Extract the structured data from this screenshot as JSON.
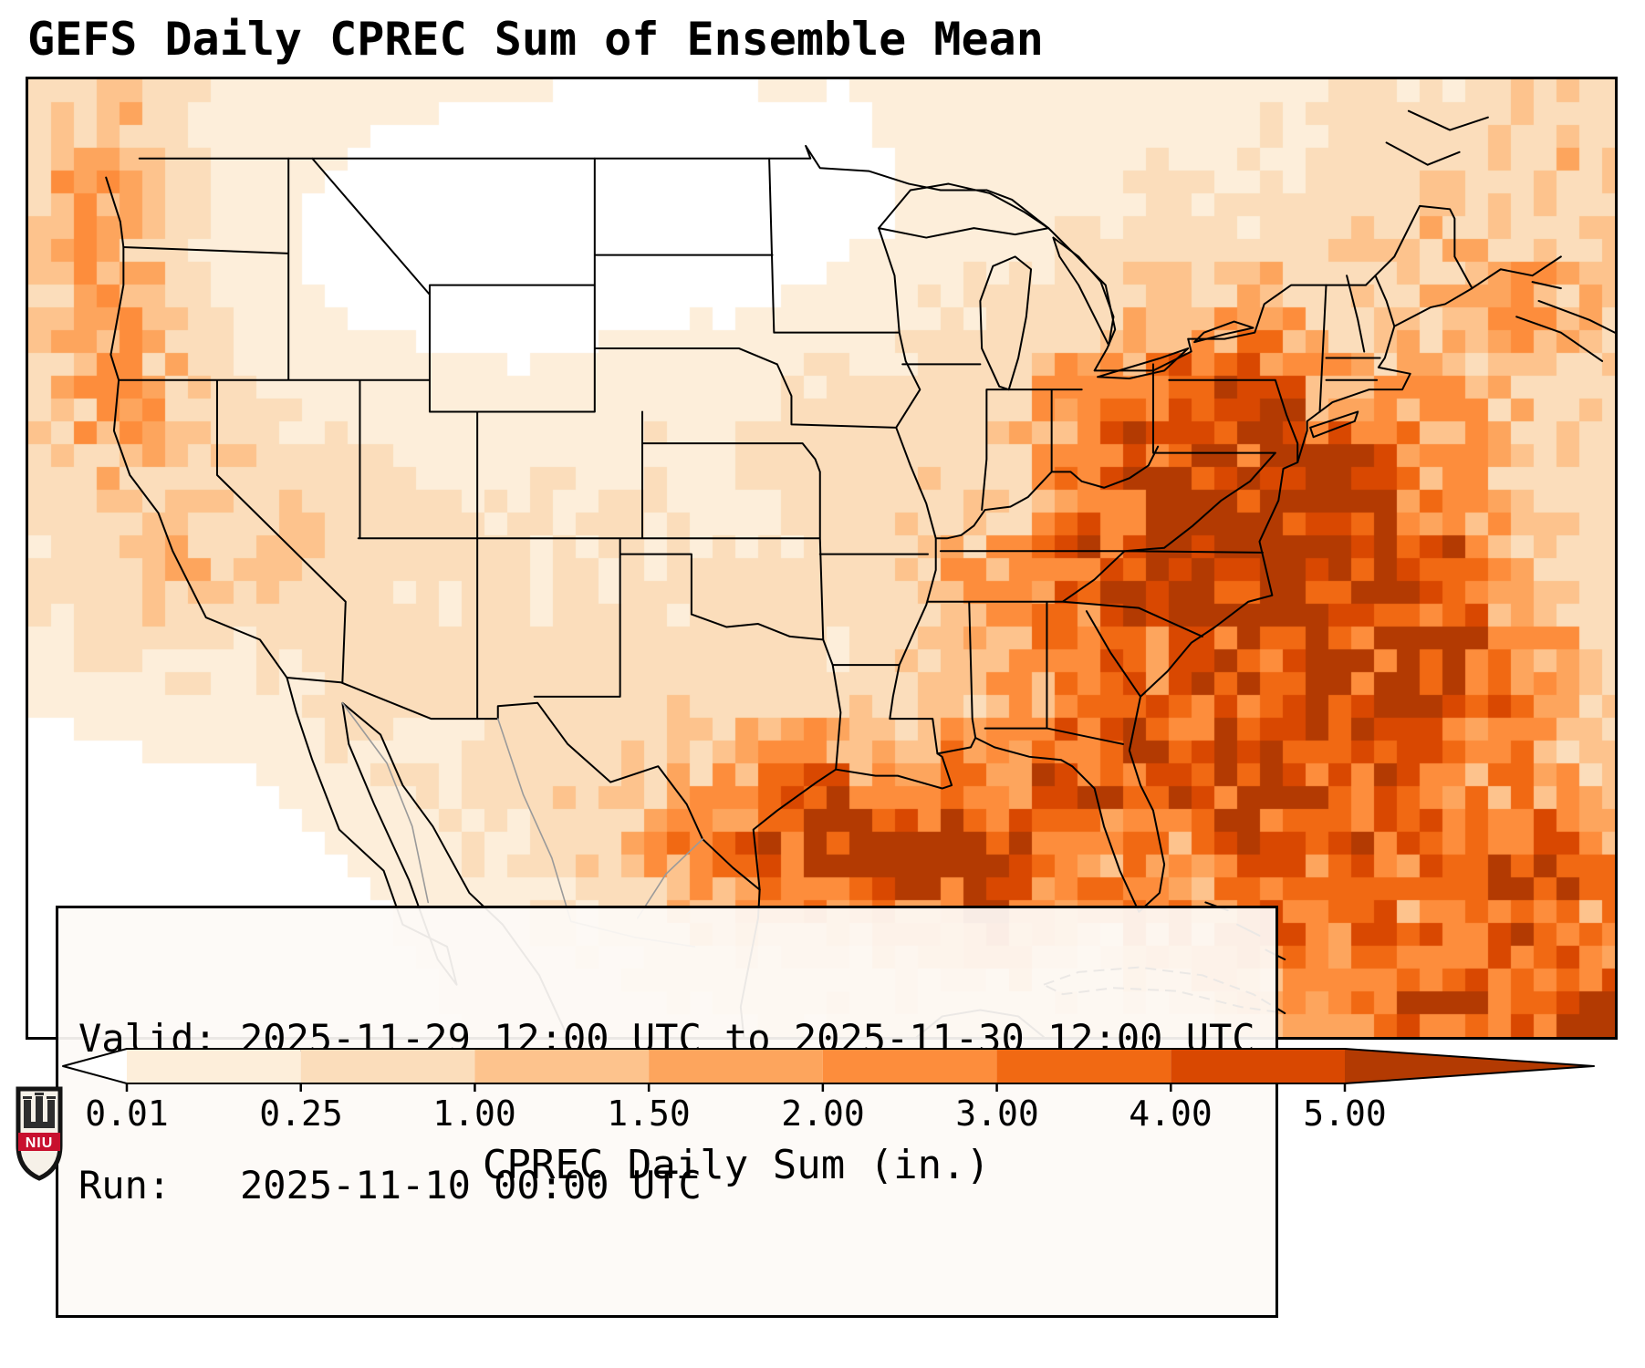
{
  "title": "GEFS Daily CPREC Sum of Ensemble Mean",
  "info_box": {
    "valid_line": "Valid: 2025-11-29 12:00 UTC to 2025-11-30 12:00 UTC",
    "run_line": "Run:   2025-11-10 00:00 UTC"
  },
  "colorbar": {
    "label": "CPREC Daily Sum (in.)",
    "ticks": [
      "0.01",
      "0.25",
      "1.00",
      "1.50",
      "2.00",
      "3.00",
      "4.00",
      "5.00"
    ],
    "boundaries": [
      0.01,
      0.25,
      1.0,
      1.5,
      2.0,
      3.0,
      4.0,
      5.0
    ],
    "segment_colors": [
      "#fdeeda",
      "#fbddbb",
      "#fdc38d",
      "#fda55d",
      "#fd8d3c",
      "#f16913",
      "#d94801"
    ],
    "under_color": "#ffffff",
    "over_color": "#b33a02"
  },
  "map": {
    "background_color": "#fdf3ea",
    "land_boundary_color": "#000000",
    "foreign_boundary_color": "#9a9a9a"
  },
  "logo": {
    "text": "NIU",
    "band_color": "#c8102e"
  },
  "chart_data": {
    "type": "heatmap",
    "title": "GEFS Daily CPREC Sum of Ensemble Mean",
    "colorbar_label": "CPREC Daily Sum (in.)",
    "colorbar_boundaries": [
      0.01,
      0.25,
      1.0,
      1.5,
      2.0,
      3.0,
      4.0,
      5.0
    ],
    "units": "in.",
    "valid_period": "2025-11-29 12:00 UTC to 2025-11-30 12:00 UTC",
    "model_run": "2025-11-10 00:00 UTC"
  }
}
